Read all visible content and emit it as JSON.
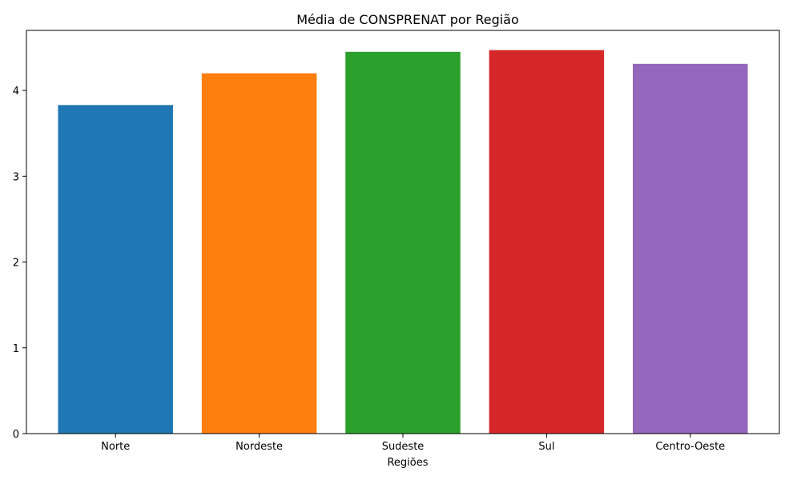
{
  "chart_data": {
    "type": "bar",
    "title": "Média de CONSPRENAT por Região",
    "xlabel": "Regiões",
    "ylabel": "",
    "categories": [
      "Norte",
      "Nordeste",
      "Sudeste",
      "Sul",
      "Centro-Oeste"
    ],
    "values": [
      3.83,
      4.2,
      4.45,
      4.47,
      4.31
    ],
    "colors": [
      "#1f77b4",
      "#ff7f0e",
      "#2ca02c",
      "#d62728",
      "#9467bd"
    ],
    "ylim": [
      0,
      4.7
    ],
    "yticks": [
      0,
      1,
      2,
      3,
      4
    ],
    "grid": false
  }
}
